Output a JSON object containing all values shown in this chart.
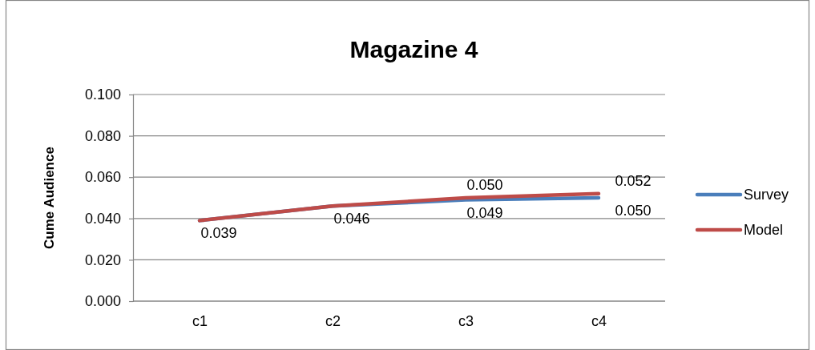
{
  "chart_data": {
    "type": "line",
    "title": "Magazine 4",
    "ylabel": "Cume Audience",
    "categories": [
      "c1",
      "c2",
      "c3",
      "c4"
    ],
    "series": [
      {
        "name": "Survey",
        "color": "#4a7ebb",
        "values": [
          0.039,
          0.046,
          0.049,
          0.05
        ],
        "value_labels": [
          "0.039",
          "0.046",
          "0.049",
          "0.050"
        ]
      },
      {
        "name": "Model",
        "color": "#be4b48",
        "values": [
          0.039,
          0.046,
          0.05,
          0.052
        ],
        "value_labels": [
          null,
          null,
          "0.050",
          "0.052"
        ]
      }
    ],
    "ylim": [
      0,
      0.1
    ],
    "yticks": [
      {
        "value": 0,
        "label": "0.000"
      },
      {
        "value": 0.02,
        "label": "0.020"
      },
      {
        "value": 0.04,
        "label": "0.040"
      },
      {
        "value": 0.06,
        "label": "0.060"
      },
      {
        "value": 0.08,
        "label": "0.080"
      },
      {
        "value": 0.1,
        "label": "0.100"
      }
    ],
    "grid": "y",
    "legend": "right",
    "marker": "none"
  }
}
